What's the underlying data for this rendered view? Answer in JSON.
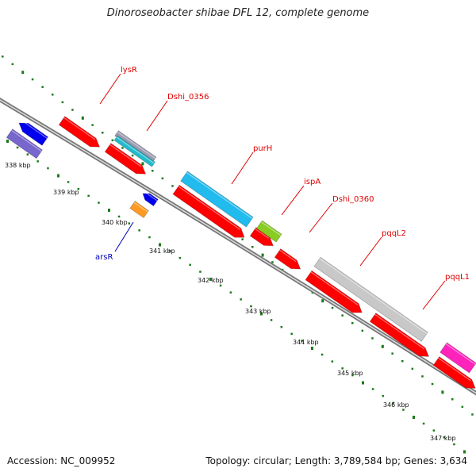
{
  "title": "Dinoroseobacter shibae DFL 12, complete genome",
  "footer": {
    "accession": "Accession: NC_009952",
    "topology": "Topology: circular; Length: 3,789,584 bp; Genes: 3,634"
  },
  "colors": {
    "backbone": "#888888",
    "tick_dots": "#1a7a1a",
    "forward_gene": "#ff0000",
    "label_red": "#e00000",
    "label_blue": "#0000bb"
  },
  "ticks": [
    {
      "label": "338 kbp"
    },
    {
      "label": "339 kbp"
    },
    {
      "label": "340 kbp"
    },
    {
      "label": "341 kbp"
    },
    {
      "label": "342 kbp"
    },
    {
      "label": "343 kbp"
    },
    {
      "label": "344 kbp"
    },
    {
      "label": "345 kbp"
    },
    {
      "label": "346 kbp"
    },
    {
      "label": "347 kbp"
    }
  ],
  "gene_labels": [
    {
      "name": "lysR",
      "color": "#e00000"
    },
    {
      "name": "Dshi_0356",
      "color": "#e00000"
    },
    {
      "name": "purH",
      "color": "#e00000"
    },
    {
      "name": "ispA",
      "color": "#e00000"
    },
    {
      "name": "Dshi_0360",
      "color": "#e00000"
    },
    {
      "name": "pqqL2",
      "color": "#e00000"
    },
    {
      "name": "pqqL1",
      "color": "#e00000"
    },
    {
      "name": "arsR",
      "color": "#0000bb"
    }
  ],
  "features": [
    {
      "name": "feature-forward-red-1",
      "color": "#ff0000"
    },
    {
      "name": "feature-forward-red-2",
      "color": "#ff0000"
    },
    {
      "name": "feature-forward-red-3",
      "color": "#ff0000"
    },
    {
      "name": "feature-forward-red-4",
      "color": "#ff0000"
    },
    {
      "name": "feature-forward-red-5",
      "color": "#ff0000"
    },
    {
      "name": "feature-forward-red-6",
      "color": "#ff0000"
    },
    {
      "name": "feature-forward-red-7",
      "color": "#ff0000"
    },
    {
      "name": "feature-forward-red-8",
      "color": "#ff0000"
    },
    {
      "name": "feature-forward-red-9",
      "color": "#ff0000"
    },
    {
      "name": "feature-gray-1",
      "color": "#9a9ab0"
    },
    {
      "name": "feature-cyan-1",
      "color": "#22bbcc"
    },
    {
      "name": "feature-cyan-2",
      "color": "#22bbee"
    },
    {
      "name": "feature-green-1",
      "color": "#88cc22"
    },
    {
      "name": "feature-gray-2",
      "color": "#c8c8c8"
    },
    {
      "name": "feature-magenta-1",
      "color": "#ff22bb"
    },
    {
      "name": "feature-blue-1",
      "color": "#0000ee"
    },
    {
      "name": "feature-purple-1",
      "color": "#7766cc"
    },
    {
      "name": "feature-blue-2",
      "color": "#0000ee"
    },
    {
      "name": "feature-orange-1",
      "color": "#ff9922"
    }
  ]
}
